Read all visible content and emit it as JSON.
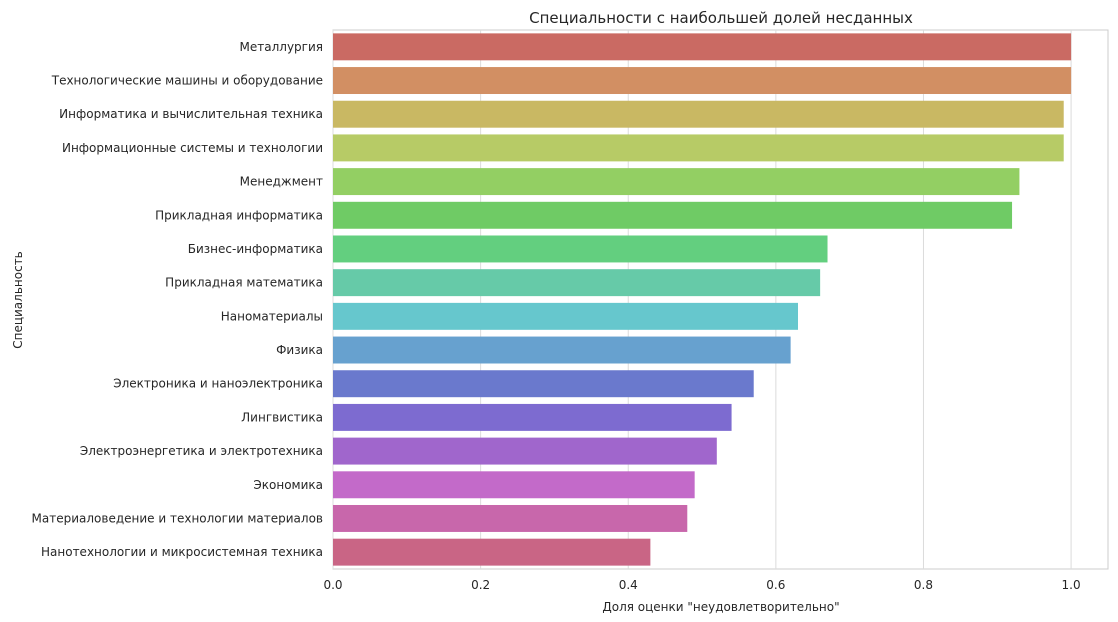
{
  "chart_data": {
    "type": "bar",
    "orientation": "horizontal",
    "title": "Специальности с наибольшей долей несданных",
    "xlabel": "Доля оценки \"неудовлетворительно\"",
    "ylabel": "Специальность",
    "xlim": [
      0,
      1.05
    ],
    "xticks": [
      "0.0",
      "0.2",
      "0.4",
      "0.6",
      "0.8",
      "1.0"
    ],
    "grid": true,
    "categories": [
      "Металлургия",
      "Технологические машины и оборудование",
      "Информатика и вычислительная техника",
      "Информационные системы и технологии",
      "Менеджмент",
      "Прикладная информатика",
      "Бизнес-информатика",
      "Прикладная математика",
      "Наноматериалы",
      "Физика",
      "Электроника и наноэлектроника",
      "Лингвистика",
      "Электроэнергетика и электротехника",
      "Экономика",
      "Материаловедение и технологии материалов",
      "Нанотехнологии и микросистемная техника"
    ],
    "values": [
      1.0,
      1.0,
      0.99,
      0.99,
      0.93,
      0.92,
      0.67,
      0.66,
      0.63,
      0.62,
      0.57,
      0.54,
      0.52,
      0.49,
      0.48,
      0.43
    ],
    "colors": [
      "#ca6a63",
      "#d28f63",
      "#c9b863",
      "#b7cb66",
      "#93cf63",
      "#6fcb65",
      "#63cf7f",
      "#66caa8",
      "#66c7cd",
      "#67a1cf",
      "#6a79cd",
      "#7d6bd0",
      "#a066cc",
      "#c36ac9",
      "#c867ab",
      "#c96585"
    ]
  }
}
